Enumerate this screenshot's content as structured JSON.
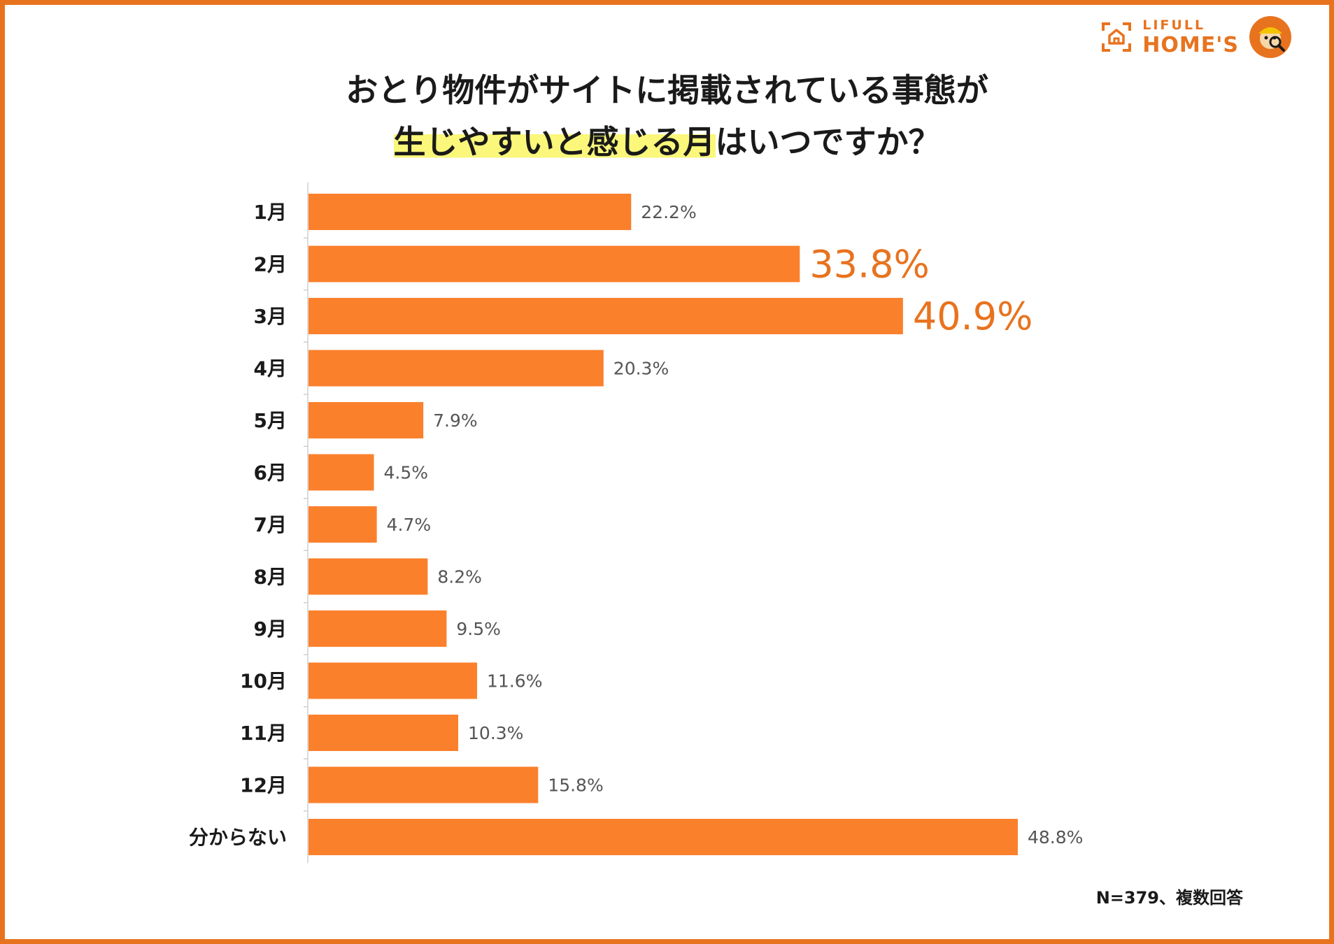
{
  "brand": {
    "logo_small": "LIFULL",
    "logo_big": "HOME'S",
    "accent_color": "#e8731f",
    "bar_color": "#fb802c",
    "highlight_color": "#faf77a"
  },
  "title": {
    "line1": "おとり物件がサイトに掲載されている事態が",
    "line2_highlight": "生じやすいと感じる月",
    "line2_rest": "はいつですか？"
  },
  "chart_data": {
    "type": "bar",
    "orientation": "horizontal",
    "title": "おとり物件がサイトに掲載されている事態が生じやすいと感じる月はいつですか？",
    "categories": [
      "1月",
      "2月",
      "3月",
      "4月",
      "5月",
      "6月",
      "7月",
      "8月",
      "9月",
      "10月",
      "11月",
      "12月",
      "分からない"
    ],
    "values": [
      22.2,
      33.8,
      40.9,
      20.3,
      7.9,
      4.5,
      4.7,
      8.2,
      9.5,
      11.6,
      10.3,
      15.8,
      48.8
    ],
    "labels": [
      "22.2%",
      "33.8%",
      "40.9%",
      "20.3%",
      "7.9%",
      "4.5%",
      "4.7%",
      "8.2%",
      "9.5%",
      "11.6%",
      "10.3%",
      "15.8%",
      "48.8%"
    ],
    "highlighted": [
      "2月",
      "3月"
    ],
    "unit": "%",
    "xlim": [
      0,
      100
    ],
    "grid": false,
    "legend": "none"
  },
  "footnote": "N=379、複数回答"
}
